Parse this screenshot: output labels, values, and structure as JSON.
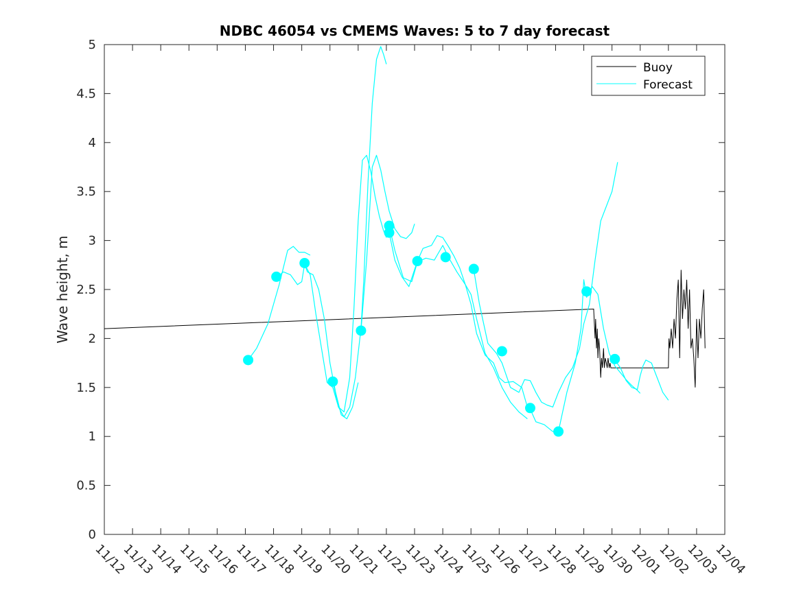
{
  "chart_data": {
    "type": "line",
    "title": "NDBC 46054 vs CMEMS Waves: 5 to 7 day forecast",
    "xlabel": "",
    "ylabel": "Wave height, m",
    "xlim": [
      0,
      22
    ],
    "ylim": [
      0,
      5
    ],
    "grid": false,
    "legend_position": "top-right",
    "x_ticks": [
      {
        "value": 0,
        "label": "11/12"
      },
      {
        "value": 1,
        "label": "11/13"
      },
      {
        "value": 2,
        "label": "11/14"
      },
      {
        "value": 3,
        "label": "11/15"
      },
      {
        "value": 4,
        "label": "11/16"
      },
      {
        "value": 5,
        "label": "11/17"
      },
      {
        "value": 6,
        "label": "11/18"
      },
      {
        "value": 7,
        "label": "11/19"
      },
      {
        "value": 8,
        "label": "11/20"
      },
      {
        "value": 9,
        "label": "11/21"
      },
      {
        "value": 10,
        "label": "11/22"
      },
      {
        "value": 11,
        "label": "11/23"
      },
      {
        "value": 12,
        "label": "11/24"
      },
      {
        "value": 13,
        "label": "11/25"
      },
      {
        "value": 14,
        "label": "11/26"
      },
      {
        "value": 15,
        "label": "11/27"
      },
      {
        "value": 16,
        "label": "11/28"
      },
      {
        "value": 17,
        "label": "11/29"
      },
      {
        "value": 18,
        "label": "11/30"
      },
      {
        "value": 19,
        "label": "12/01"
      },
      {
        "value": 20,
        "label": "12/02"
      },
      {
        "value": 21,
        "label": "12/03"
      },
      {
        "value": 22,
        "label": "12/04"
      }
    ],
    "y_ticks": [
      {
        "value": 0,
        "label": "0"
      },
      {
        "value": 0.5,
        "label": "0.5"
      },
      {
        "value": 1,
        "label": "1"
      },
      {
        "value": 1.5,
        "label": "1.5"
      },
      {
        "value": 2,
        "label": "2"
      },
      {
        "value": 2.5,
        "label": "2.5"
      },
      {
        "value": 3,
        "label": "3"
      },
      {
        "value": 3.5,
        "label": "3.5"
      },
      {
        "value": 4,
        "label": "4"
      },
      {
        "value": 4.5,
        "label": "4.5"
      },
      {
        "value": 5,
        "label": "5"
      }
    ],
    "colors": {
      "buoy": "#000000",
      "forecast": "#00ffff",
      "axes": "#262626"
    },
    "series": [
      {
        "name": "Buoy",
        "color": "#000000",
        "x": [
          0,
          17.35,
          17.4,
          17.42,
          17.45,
          17.48,
          17.5,
          17.53,
          17.56,
          17.6,
          17.63,
          17.66,
          17.7,
          17.73,
          17.76,
          17.8,
          17.83,
          17.86,
          17.9,
          17.93,
          17.96,
          18.0,
          18.05,
          20.0,
          20.02,
          20.05,
          20.1,
          20.15,
          20.2,
          20.25,
          20.3,
          20.35,
          20.4,
          20.45,
          20.5,
          20.55,
          20.6,
          20.65,
          20.7,
          20.75,
          20.8,
          20.85,
          20.9,
          20.95,
          21.0,
          21.05,
          21.1,
          21.15,
          21.2,
          21.25,
          21.3
        ],
        "y": [
          2.1,
          2.3,
          2.0,
          2.2,
          1.9,
          2.1,
          1.8,
          2.0,
          1.9,
          1.6,
          1.8,
          1.7,
          1.9,
          1.7,
          1.8,
          1.75,
          1.7,
          1.8,
          1.7,
          1.75,
          1.7,
          1.7,
          1.7,
          1.7,
          2.0,
          1.9,
          2.1,
          1.9,
          2.2,
          2.0,
          2.4,
          2.6,
          1.8,
          2.7,
          2.2,
          2.5,
          2.3,
          2.6,
          2.1,
          2.5,
          1.9,
          2.0,
          1.8,
          1.5,
          2.2,
          1.8,
          2.2,
          2.0,
          2.3,
          2.5,
          1.9
        ]
      },
      {
        "name": "Forecast",
        "color": "#00ffff",
        "segments": [
          {
            "x": [
              5.1,
              5.4,
              5.8,
              6.2,
              6.5,
              6.7,
              6.9,
              7.1,
              7.3
            ],
            "y": [
              1.78,
              1.9,
              2.15,
              2.55,
              2.9,
              2.94,
              2.88,
              2.88,
              2.85
            ]
          },
          {
            "x": [
              6.1,
              6.35,
              6.6,
              6.85,
              7.0,
              7.1,
              7.2,
              7.4,
              7.6,
              7.8,
              8.0,
              8.2,
              8.4,
              8.6,
              8.8,
              9.0
            ],
            "y": [
              2.62,
              2.68,
              2.65,
              2.55,
              2.58,
              2.76,
              2.68,
              2.65,
              2.5,
              2.2,
              1.75,
              1.45,
              1.22,
              1.18,
              1.3,
              1.55
            ]
          },
          {
            "x": [
              7.1,
              7.3,
              7.5,
              7.7,
              7.9,
              8.1,
              8.3,
              8.5,
              8.7,
              8.85,
              9.0,
              9.15,
              9.3,
              9.45,
              9.6,
              9.75,
              9.9,
              10.0
            ],
            "y": [
              2.76,
              2.65,
              2.25,
              1.9,
              1.55,
              1.5,
              1.3,
              1.25,
              1.6,
              2.3,
              3.2,
              3.82,
              3.87,
              3.7,
              3.45,
              3.25,
              3.1,
              3.03
            ]
          },
          {
            "x": [
              8.1,
              8.3,
              8.5,
              8.7,
              8.9,
              9.1,
              9.2,
              9.35,
              9.5,
              9.65,
              9.8,
              9.9,
              10.0
            ],
            "y": [
              1.56,
              1.3,
              1.2,
              1.3,
              1.6,
              2.1,
              2.6,
              3.6,
              4.4,
              4.85,
              4.98,
              4.9,
              4.8
            ]
          },
          {
            "x": [
              9.1,
              9.3,
              9.5,
              9.65,
              9.8,
              9.95,
              10.1,
              10.3,
              10.5,
              10.7,
              10.9,
              11.0
            ],
            "y": [
              2.08,
              2.8,
              3.75,
              3.87,
              3.72,
              3.5,
              3.3,
              3.12,
              3.04,
              3.02,
              3.08,
              3.17
            ]
          },
          {
            "x": [
              10.1,
              10.3,
              10.55,
              10.8,
              11.1,
              11.3,
              11.6,
              11.8,
              12.0,
              12.2,
              12.4,
              12.6,
              12.8,
              13.0,
              13.2,
              13.5,
              13.8,
              14.0,
              14.2,
              14.5,
              14.8,
              15.0
            ],
            "y": [
              3.08,
              2.8,
              2.63,
              2.53,
              2.79,
              2.92,
              2.95,
              3.05,
              3.03,
              2.94,
              2.84,
              2.72,
              2.55,
              2.35,
              2.05,
              1.83,
              1.75,
              1.6,
              1.55,
              1.56,
              1.5,
              1.3
            ]
          },
          {
            "x": [
              10.1,
              10.3,
              10.6,
              10.9,
              11.1,
              11.4,
              11.7,
              12.0,
              12.2,
              12.5,
              12.8,
              13.0,
              13.2,
              13.5,
              13.8,
              14.1,
              14.4,
              14.7,
              15.0
            ],
            "y": [
              3.15,
              2.9,
              2.62,
              2.58,
              2.78,
              2.82,
              2.8,
              2.95,
              2.83,
              2.68,
              2.55,
              2.45,
              2.2,
              1.85,
              1.7,
              1.5,
              1.35,
              1.25,
              1.18
            ]
          },
          {
            "x": [
              13.1,
              13.3,
              13.6,
              13.9,
              14.1,
              14.4,
              14.7,
              14.9,
              15.1,
              15.3,
              15.5,
              15.7,
              15.9,
              16.1,
              16.35,
              16.6,
              16.85,
              17.0,
              17.2,
              17.4,
              17.6,
              17.8,
              18.0,
              18.2
            ],
            "y": [
              2.7,
              2.35,
              1.95,
              1.85,
              1.75,
              1.5,
              1.45,
              1.58,
              1.57,
              1.45,
              1.35,
              1.32,
              1.3,
              1.45,
              1.6,
              1.7,
              1.9,
              2.15,
              2.35,
              2.8,
              3.2,
              3.35,
              3.5,
              3.8
            ]
          },
          {
            "x": [
              15.1,
              15.3,
              15.6,
              15.9,
              16.1,
              16.4,
              16.7,
              16.9,
              17.0,
              17.1,
              17.3,
              17.5,
              17.7,
              17.9,
              18.1,
              18.3,
              18.5,
              18.7,
              18.9,
              19.0
            ],
            "y": [
              1.28,
              1.15,
              1.12,
              1.05,
              1.05,
              1.45,
              1.75,
              2.1,
              2.6,
              2.42,
              2.53,
              2.45,
              2.1,
              1.85,
              1.72,
              1.65,
              1.58,
              1.52,
              1.47,
              1.44
            ]
          },
          {
            "x": [
              18.1,
              18.3,
              18.5,
              18.7,
              18.9,
              19.0,
              19.1,
              19.2,
              19.4,
              19.6,
              19.8,
              20.0
            ],
            "y": [
              1.78,
              1.7,
              1.57,
              1.5,
              1.48,
              1.62,
              1.72,
              1.78,
              1.75,
              1.6,
              1.45,
              1.37
            ]
          }
        ],
        "markers": {
          "x": [
            5.1,
            6.1,
            7.1,
            8.1,
            9.1,
            10.1,
            10.1,
            11.1,
            12.1,
            13.1,
            14.1,
            15.1,
            16.1,
            17.1,
            18.1
          ],
          "y": [
            1.78,
            2.63,
            2.77,
            1.56,
            2.08,
            3.15,
            3.08,
            2.79,
            2.83,
            2.71,
            1.87,
            1.29,
            1.05,
            2.48,
            1.79
          ]
        }
      }
    ],
    "legend": [
      {
        "label": "Buoy",
        "color": "#000000"
      },
      {
        "label": "Forecast",
        "color": "#00ffff"
      }
    ]
  }
}
